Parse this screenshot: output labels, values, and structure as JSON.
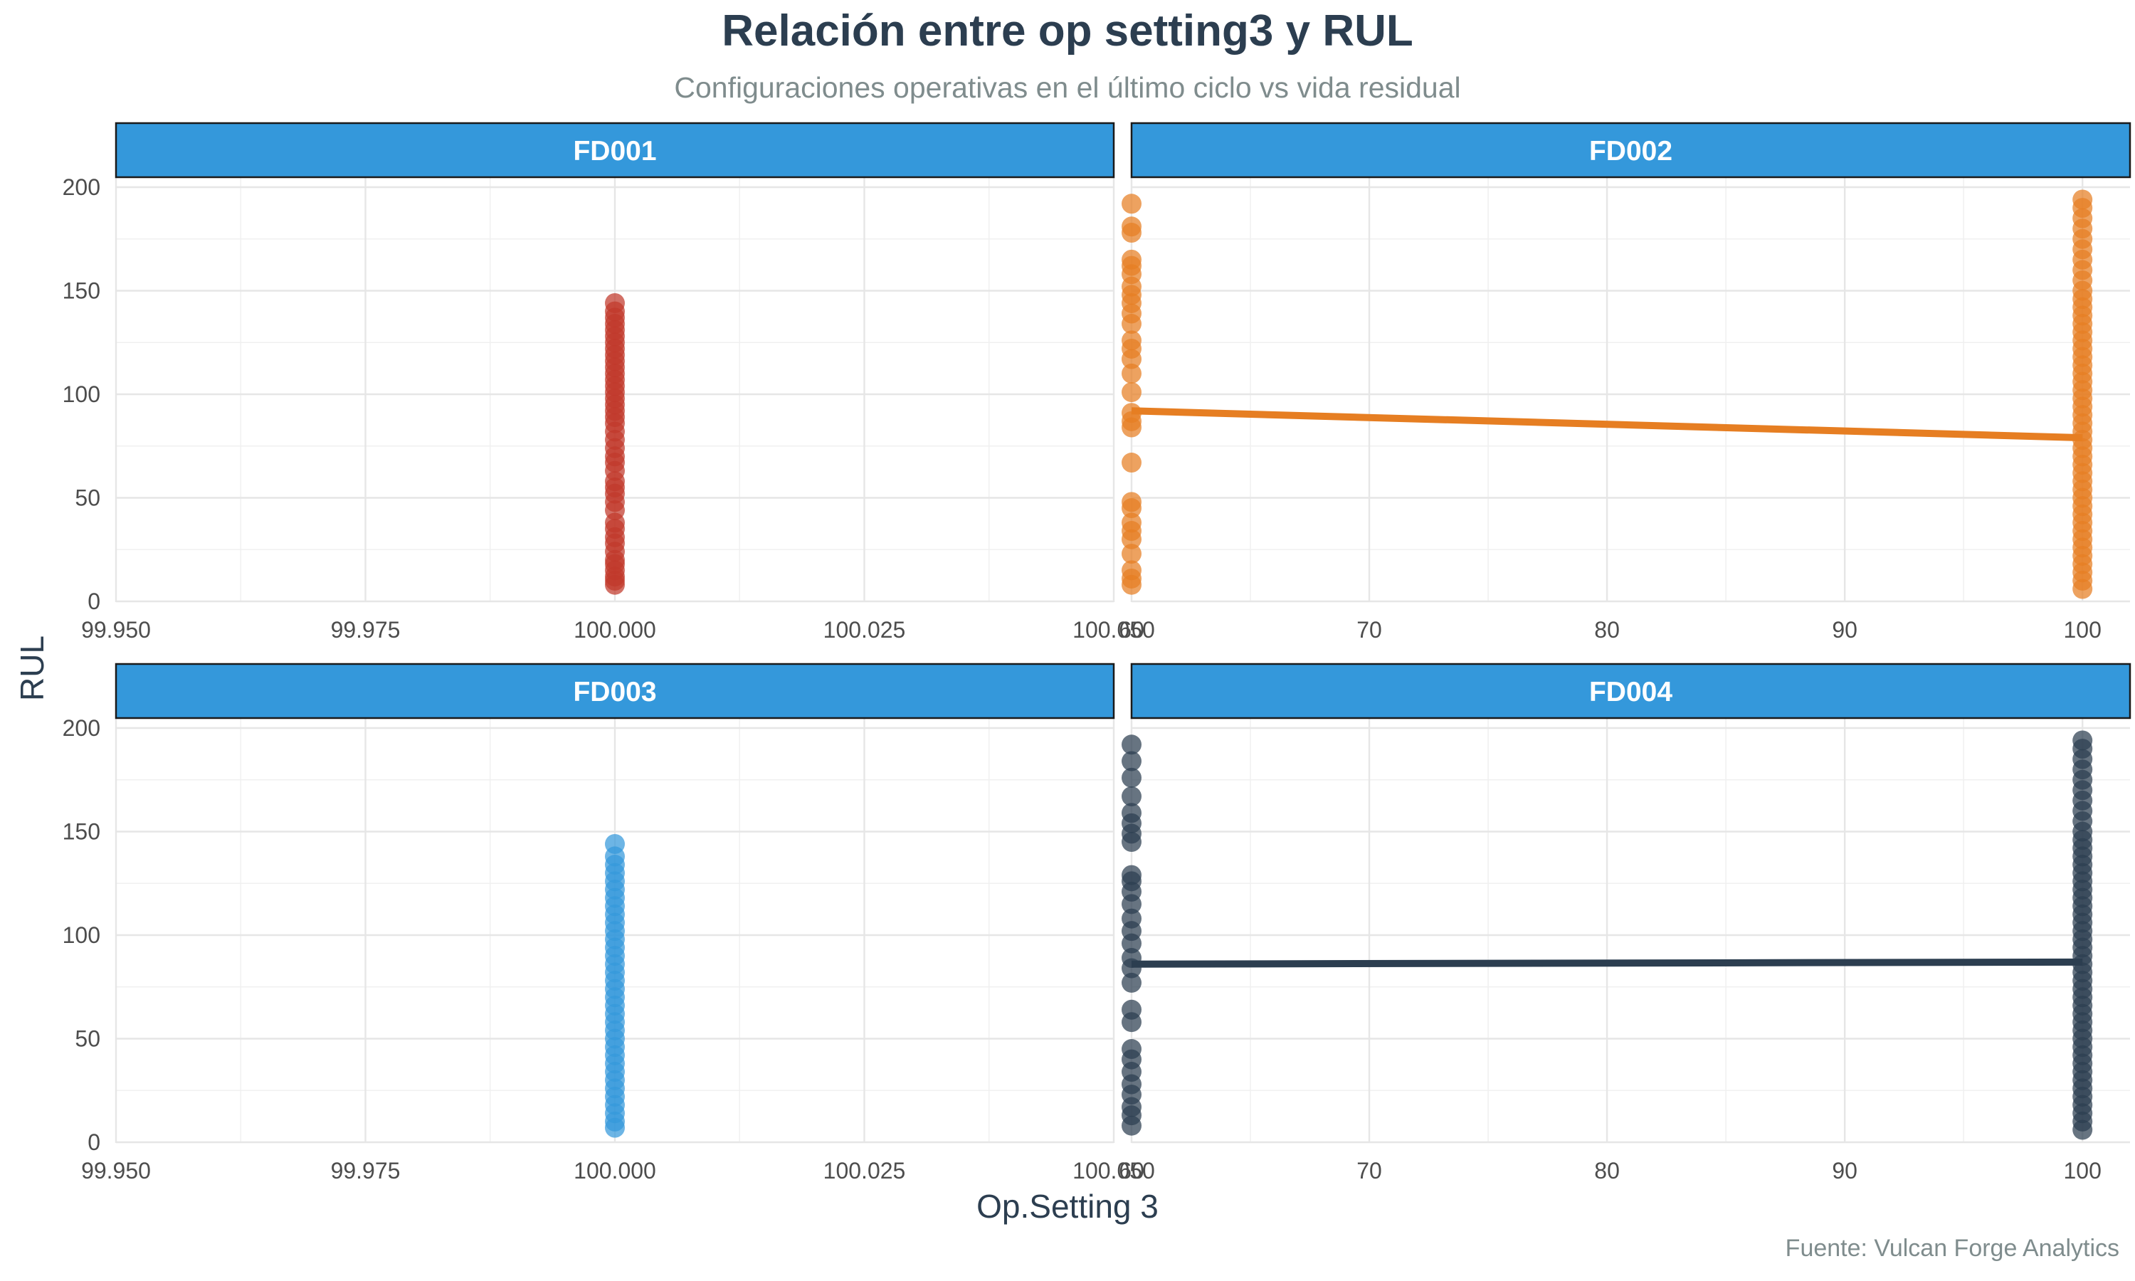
{
  "title": "Relación entre op setting3 y RUL",
  "subtitle": "Configuraciones operativas en el último ciclo vs vida residual",
  "caption": "Fuente: Vulcan Forge Analytics",
  "xlabel": "Op.Setting 3",
  "ylabel": "RUL",
  "colors": {
    "strip": "#3498db",
    "FD001": "#c0392b",
    "FD002": "#e67e22",
    "FD003": "#3498db",
    "FD004": "#2c3e50"
  },
  "chart_data": [
    {
      "type": "scatter",
      "panel": "FD001",
      "xlim": [
        99.95,
        100.05
      ],
      "ylim": [
        0,
        200
      ],
      "x_ticks": [
        99.95,
        99.975,
        100.0,
        100.025,
        100.05
      ],
      "x_tick_labels": [
        "99.950",
        "99.975",
        "100.000",
        "100.025",
        "100.050"
      ],
      "y_ticks": [
        0,
        50,
        100,
        150,
        200
      ],
      "points": [
        {
          "x": 100,
          "y": 8
        },
        {
          "x": 100,
          "y": 10
        },
        {
          "x": 100,
          "y": 12
        },
        {
          "x": 100,
          "y": 15
        },
        {
          "x": 100,
          "y": 18
        },
        {
          "x": 100,
          "y": 20
        },
        {
          "x": 100,
          "y": 24
        },
        {
          "x": 100,
          "y": 28
        },
        {
          "x": 100,
          "y": 31
        },
        {
          "x": 100,
          "y": 35
        },
        {
          "x": 100,
          "y": 38
        },
        {
          "x": 100,
          "y": 44
        },
        {
          "x": 100,
          "y": 48
        },
        {
          "x": 100,
          "y": 52
        },
        {
          "x": 100,
          "y": 55
        },
        {
          "x": 100,
          "y": 58
        },
        {
          "x": 100,
          "y": 63
        },
        {
          "x": 100,
          "y": 67
        },
        {
          "x": 100,
          "y": 70
        },
        {
          "x": 100,
          "y": 74
        },
        {
          "x": 100,
          "y": 78
        },
        {
          "x": 100,
          "y": 82
        },
        {
          "x": 100,
          "y": 86
        },
        {
          "x": 100,
          "y": 89
        },
        {
          "x": 100,
          "y": 92
        },
        {
          "x": 100,
          "y": 95
        },
        {
          "x": 100,
          "y": 98
        },
        {
          "x": 100,
          "y": 101
        },
        {
          "x": 100,
          "y": 104
        },
        {
          "x": 100,
          "y": 107
        },
        {
          "x": 100,
          "y": 110
        },
        {
          "x": 100,
          "y": 113
        },
        {
          "x": 100,
          "y": 116
        },
        {
          "x": 100,
          "y": 119
        },
        {
          "x": 100,
          "y": 122
        },
        {
          "x": 100,
          "y": 125
        },
        {
          "x": 100,
          "y": 128
        },
        {
          "x": 100,
          "y": 131
        },
        {
          "x": 100,
          "y": 134
        },
        {
          "x": 100,
          "y": 137
        },
        {
          "x": 100,
          "y": 140
        },
        {
          "x": 100,
          "y": 144
        }
      ]
    },
    {
      "type": "scatter",
      "panel": "FD002",
      "xlim": [
        60,
        102
      ],
      "ylim": [
        0,
        200
      ],
      "x_ticks": [
        60,
        70,
        80,
        90,
        100
      ],
      "x_tick_labels": [
        "60",
        "70",
        "80",
        "90",
        "100"
      ],
      "y_ticks": [
        0,
        50,
        100,
        150,
        200
      ],
      "points": [
        {
          "x": 60,
          "y": 8
        },
        {
          "x": 60,
          "y": 11
        },
        {
          "x": 60,
          "y": 15
        },
        {
          "x": 60,
          "y": 23
        },
        {
          "x": 60,
          "y": 30
        },
        {
          "x": 60,
          "y": 34
        },
        {
          "x": 60,
          "y": 38
        },
        {
          "x": 60,
          "y": 45
        },
        {
          "x": 60,
          "y": 48
        },
        {
          "x": 60,
          "y": 67
        },
        {
          "x": 60,
          "y": 84
        },
        {
          "x": 60,
          "y": 87
        },
        {
          "x": 60,
          "y": 91
        },
        {
          "x": 60,
          "y": 101
        },
        {
          "x": 60,
          "y": 110
        },
        {
          "x": 60,
          "y": 117
        },
        {
          "x": 60,
          "y": 122
        },
        {
          "x": 60,
          "y": 126
        },
        {
          "x": 60,
          "y": 134
        },
        {
          "x": 60,
          "y": 139
        },
        {
          "x": 60,
          "y": 144
        },
        {
          "x": 60,
          "y": 148
        },
        {
          "x": 60,
          "y": 152
        },
        {
          "x": 60,
          "y": 158
        },
        {
          "x": 60,
          "y": 162
        },
        {
          "x": 60,
          "y": 165
        },
        {
          "x": 60,
          "y": 178
        },
        {
          "x": 60,
          "y": 181
        },
        {
          "x": 60,
          "y": 192
        },
        {
          "x": 100,
          "y": 6
        },
        {
          "x": 100,
          "y": 10
        },
        {
          "x": 100,
          "y": 14
        },
        {
          "x": 100,
          "y": 18
        },
        {
          "x": 100,
          "y": 22
        },
        {
          "x": 100,
          "y": 26
        },
        {
          "x": 100,
          "y": 30
        },
        {
          "x": 100,
          "y": 34
        },
        {
          "x": 100,
          "y": 38
        },
        {
          "x": 100,
          "y": 42
        },
        {
          "x": 100,
          "y": 46
        },
        {
          "x": 100,
          "y": 50
        },
        {
          "x": 100,
          "y": 54
        },
        {
          "x": 100,
          "y": 58
        },
        {
          "x": 100,
          "y": 62
        },
        {
          "x": 100,
          "y": 66
        },
        {
          "x": 100,
          "y": 70
        },
        {
          "x": 100,
          "y": 74
        },
        {
          "x": 100,
          "y": 78
        },
        {
          "x": 100,
          "y": 82
        },
        {
          "x": 100,
          "y": 86
        },
        {
          "x": 100,
          "y": 90
        },
        {
          "x": 100,
          "y": 94
        },
        {
          "x": 100,
          "y": 98
        },
        {
          "x": 100,
          "y": 102
        },
        {
          "x": 100,
          "y": 106
        },
        {
          "x": 100,
          "y": 110
        },
        {
          "x": 100,
          "y": 114
        },
        {
          "x": 100,
          "y": 118
        },
        {
          "x": 100,
          "y": 122
        },
        {
          "x": 100,
          "y": 126
        },
        {
          "x": 100,
          "y": 130
        },
        {
          "x": 100,
          "y": 134
        },
        {
          "x": 100,
          "y": 138
        },
        {
          "x": 100,
          "y": 142
        },
        {
          "x": 100,
          "y": 146
        },
        {
          "x": 100,
          "y": 150
        },
        {
          "x": 100,
          "y": 155
        },
        {
          "x": 100,
          "y": 160
        },
        {
          "x": 100,
          "y": 165
        },
        {
          "x": 100,
          "y": 170
        },
        {
          "x": 100,
          "y": 175
        },
        {
          "x": 100,
          "y": 180
        },
        {
          "x": 100,
          "y": 185
        },
        {
          "x": 100,
          "y": 190
        },
        {
          "x": 100,
          "y": 194
        }
      ],
      "trend": [
        {
          "x": 60,
          "y": 92
        },
        {
          "x": 100,
          "y": 79
        }
      ]
    },
    {
      "type": "scatter",
      "panel": "FD003",
      "xlim": [
        99.95,
        100.05
      ],
      "ylim": [
        0,
        200
      ],
      "x_ticks": [
        99.95,
        99.975,
        100.0,
        100.025,
        100.05
      ],
      "x_tick_labels": [
        "99.950",
        "99.975",
        "100.000",
        "100.025",
        "100.050"
      ],
      "y_ticks": [
        0,
        50,
        100,
        150,
        200
      ],
      "points": [
        {
          "x": 100,
          "y": 7
        },
        {
          "x": 100,
          "y": 10
        },
        {
          "x": 100,
          "y": 14
        },
        {
          "x": 100,
          "y": 18
        },
        {
          "x": 100,
          "y": 22
        },
        {
          "x": 100,
          "y": 26
        },
        {
          "x": 100,
          "y": 30
        },
        {
          "x": 100,
          "y": 34
        },
        {
          "x": 100,
          "y": 38
        },
        {
          "x": 100,
          "y": 42
        },
        {
          "x": 100,
          "y": 46
        },
        {
          "x": 100,
          "y": 50
        },
        {
          "x": 100,
          "y": 54
        },
        {
          "x": 100,
          "y": 58
        },
        {
          "x": 100,
          "y": 62
        },
        {
          "x": 100,
          "y": 66
        },
        {
          "x": 100,
          "y": 70
        },
        {
          "x": 100,
          "y": 74
        },
        {
          "x": 100,
          "y": 78
        },
        {
          "x": 100,
          "y": 82
        },
        {
          "x": 100,
          "y": 86
        },
        {
          "x": 100,
          "y": 90
        },
        {
          "x": 100,
          "y": 94
        },
        {
          "x": 100,
          "y": 98
        },
        {
          "x": 100,
          "y": 102
        },
        {
          "x": 100,
          "y": 106
        },
        {
          "x": 100,
          "y": 110
        },
        {
          "x": 100,
          "y": 114
        },
        {
          "x": 100,
          "y": 118
        },
        {
          "x": 100,
          "y": 122
        },
        {
          "x": 100,
          "y": 126
        },
        {
          "x": 100,
          "y": 130
        },
        {
          "x": 100,
          "y": 134
        },
        {
          "x": 100,
          "y": 138
        },
        {
          "x": 100,
          "y": 144
        }
      ]
    },
    {
      "type": "scatter",
      "panel": "FD004",
      "xlim": [
        60,
        102
      ],
      "ylim": [
        0,
        200
      ],
      "x_ticks": [
        60,
        70,
        80,
        90,
        100
      ],
      "x_tick_labels": [
        "60",
        "70",
        "80",
        "90",
        "100"
      ],
      "y_ticks": [
        0,
        50,
        100,
        150,
        200
      ],
      "points": [
        {
          "x": 60,
          "y": 8
        },
        {
          "x": 60,
          "y": 13
        },
        {
          "x": 60,
          "y": 17
        },
        {
          "x": 60,
          "y": 23
        },
        {
          "x": 60,
          "y": 28
        },
        {
          "x": 60,
          "y": 34
        },
        {
          "x": 60,
          "y": 40
        },
        {
          "x": 60,
          "y": 45
        },
        {
          "x": 60,
          "y": 58
        },
        {
          "x": 60,
          "y": 64
        },
        {
          "x": 60,
          "y": 77
        },
        {
          "x": 60,
          "y": 84
        },
        {
          "x": 60,
          "y": 89
        },
        {
          "x": 60,
          "y": 96
        },
        {
          "x": 60,
          "y": 102
        },
        {
          "x": 60,
          "y": 108
        },
        {
          "x": 60,
          "y": 115
        },
        {
          "x": 60,
          "y": 121
        },
        {
          "x": 60,
          "y": 126
        },
        {
          "x": 60,
          "y": 129
        },
        {
          "x": 60,
          "y": 145
        },
        {
          "x": 60,
          "y": 149
        },
        {
          "x": 60,
          "y": 154
        },
        {
          "x": 60,
          "y": 159
        },
        {
          "x": 60,
          "y": 167
        },
        {
          "x": 60,
          "y": 176
        },
        {
          "x": 60,
          "y": 184
        },
        {
          "x": 60,
          "y": 192
        },
        {
          "x": 100,
          "y": 6
        },
        {
          "x": 100,
          "y": 10
        },
        {
          "x": 100,
          "y": 14
        },
        {
          "x": 100,
          "y": 18
        },
        {
          "x": 100,
          "y": 22
        },
        {
          "x": 100,
          "y": 26
        },
        {
          "x": 100,
          "y": 30
        },
        {
          "x": 100,
          "y": 34
        },
        {
          "x": 100,
          "y": 38
        },
        {
          "x": 100,
          "y": 42
        },
        {
          "x": 100,
          "y": 46
        },
        {
          "x": 100,
          "y": 50
        },
        {
          "x": 100,
          "y": 54
        },
        {
          "x": 100,
          "y": 58
        },
        {
          "x": 100,
          "y": 62
        },
        {
          "x": 100,
          "y": 66
        },
        {
          "x": 100,
          "y": 70
        },
        {
          "x": 100,
          "y": 74
        },
        {
          "x": 100,
          "y": 78
        },
        {
          "x": 100,
          "y": 82
        },
        {
          "x": 100,
          "y": 86
        },
        {
          "x": 100,
          "y": 90
        },
        {
          "x": 100,
          "y": 94
        },
        {
          "x": 100,
          "y": 98
        },
        {
          "x": 100,
          "y": 102
        },
        {
          "x": 100,
          "y": 106
        },
        {
          "x": 100,
          "y": 110
        },
        {
          "x": 100,
          "y": 114
        },
        {
          "x": 100,
          "y": 118
        },
        {
          "x": 100,
          "y": 122
        },
        {
          "x": 100,
          "y": 126
        },
        {
          "x": 100,
          "y": 130
        },
        {
          "x": 100,
          "y": 134
        },
        {
          "x": 100,
          "y": 138
        },
        {
          "x": 100,
          "y": 142
        },
        {
          "x": 100,
          "y": 146
        },
        {
          "x": 100,
          "y": 150
        },
        {
          "x": 100,
          "y": 155
        },
        {
          "x": 100,
          "y": 160
        },
        {
          "x": 100,
          "y": 165
        },
        {
          "x": 100,
          "y": 170
        },
        {
          "x": 100,
          "y": 175
        },
        {
          "x": 100,
          "y": 180
        },
        {
          "x": 100,
          "y": 185
        },
        {
          "x": 100,
          "y": 190
        },
        {
          "x": 100,
          "y": 194
        }
      ],
      "trend": [
        {
          "x": 60,
          "y": 86
        },
        {
          "x": 100,
          "y": 87
        }
      ]
    }
  ]
}
